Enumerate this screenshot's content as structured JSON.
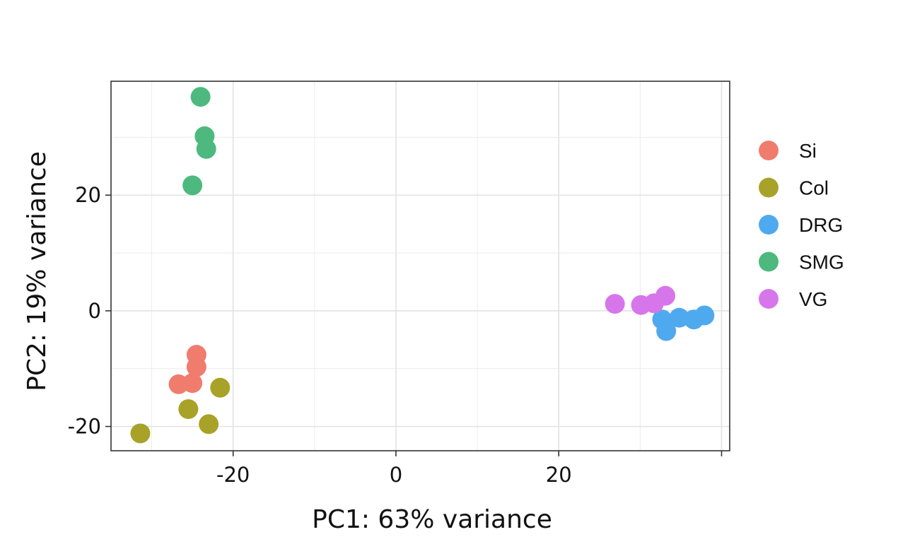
{
  "chart_data": {
    "type": "scatter",
    "title": "",
    "xlabel": "PC1: 63% variance",
    "ylabel": "PC2: 19% variance",
    "xlim": [
      -35,
      41
    ],
    "ylim": [
      -24.2,
      39.7
    ],
    "xticks": [
      -20,
      0,
      20
    ],
    "yticks": [
      -20,
      0,
      20
    ],
    "grid": true,
    "legend_position": "right",
    "series": [
      {
        "name": "Si",
        "color": "#F07C6E",
        "points": [
          [
            -24.5,
            -7.6
          ],
          [
            -24.5,
            -9.7
          ],
          [
            -26.7,
            -12.7
          ],
          [
            -25.0,
            -12.5
          ]
        ]
      },
      {
        "name": "Col",
        "color": "#A8A229",
        "points": [
          [
            -31.4,
            -21.2
          ],
          [
            -25.5,
            -17.0
          ],
          [
            -23.0,
            -19.6
          ],
          [
            -21.6,
            -13.3
          ]
        ]
      },
      {
        "name": "DRG",
        "color": "#4FA9EF",
        "points": [
          [
            32.7,
            -1.5
          ],
          [
            33.2,
            -3.5
          ],
          [
            34.8,
            -1.2
          ],
          [
            36.6,
            -1.5
          ],
          [
            37.9,
            -0.8
          ]
        ]
      },
      {
        "name": "SMG",
        "color": "#4DB97E",
        "points": [
          [
            -24.0,
            37.0
          ],
          [
            -23.5,
            30.2
          ],
          [
            -23.3,
            28.0
          ],
          [
            -25.0,
            21.7
          ]
        ]
      },
      {
        "name": "VG",
        "color": "#D776EB",
        "points": [
          [
            26.9,
            1.2
          ],
          [
            30.1,
            1.0
          ],
          [
            31.7,
            1.3
          ],
          [
            33.1,
            2.6
          ]
        ]
      }
    ]
  }
}
